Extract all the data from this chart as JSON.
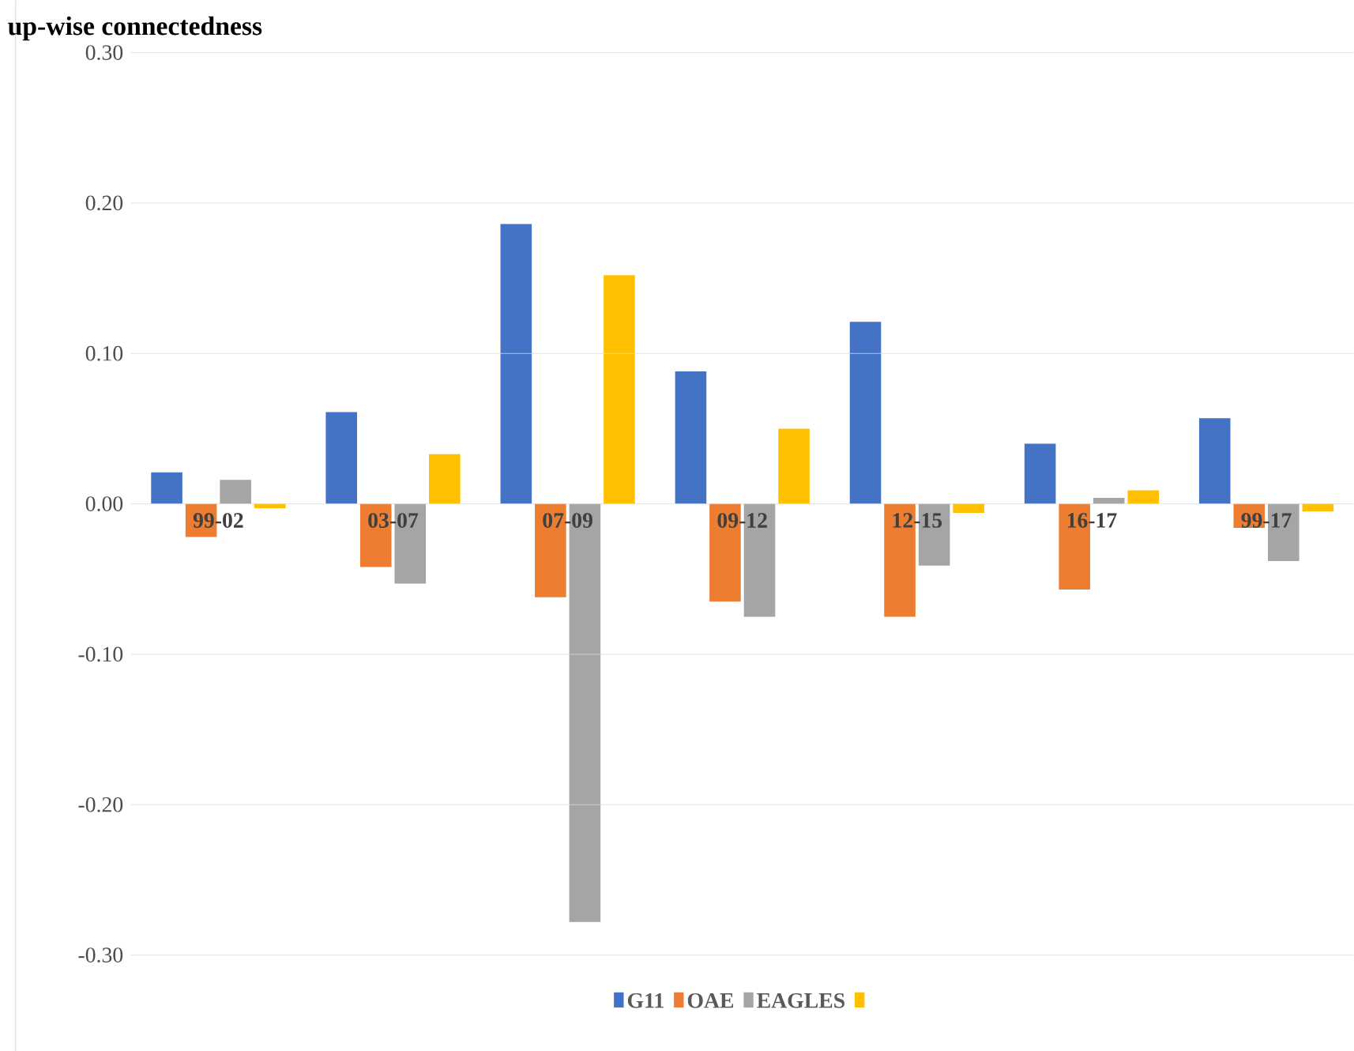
{
  "chart_data": {
    "type": "bar",
    "title": "up-wise  connectedness",
    "categories": [
      "99-02",
      "03-07",
      "07-09",
      "09-12",
      "12-15",
      "16-17",
      "99-17"
    ],
    "series": [
      {
        "name": "G11",
        "color": "#4472c4",
        "values": [
          0.021,
          0.061,
          0.186,
          0.088,
          0.121,
          0.04,
          0.057
        ]
      },
      {
        "name": "OAE",
        "color": "#ed7d31",
        "values": [
          -0.022,
          -0.042,
          -0.062,
          -0.065,
          -0.075,
          -0.057,
          -0.016
        ]
      },
      {
        "name": "EAGLES",
        "color": "#a5a5a5",
        "values": [
          0.016,
          -0.053,
          -0.278,
          -0.075,
          -0.041,
          0.004,
          -0.038
        ]
      },
      {
        "color": "#ffc000",
        "values": [
          -0.003,
          0.033,
          0.152,
          0.05,
          -0.006,
          0.009,
          -0.005
        ]
      }
    ],
    "ylim": [
      -0.3,
      0.3
    ],
    "yticks": [
      {
        "value": -0.3,
        "label": "-0.30"
      },
      {
        "value": -0.2,
        "label": "-0.20"
      },
      {
        "value": -0.1,
        "label": "-0.10"
      },
      {
        "value": 0,
        "label": "0.00"
      },
      {
        "value": 0.1,
        "label": "0.10"
      },
      {
        "value": 0.2,
        "label": "0.20"
      },
      {
        "value": 0.3,
        "label": "0.30"
      }
    ],
    "grid": "y",
    "legend": "bottom"
  }
}
